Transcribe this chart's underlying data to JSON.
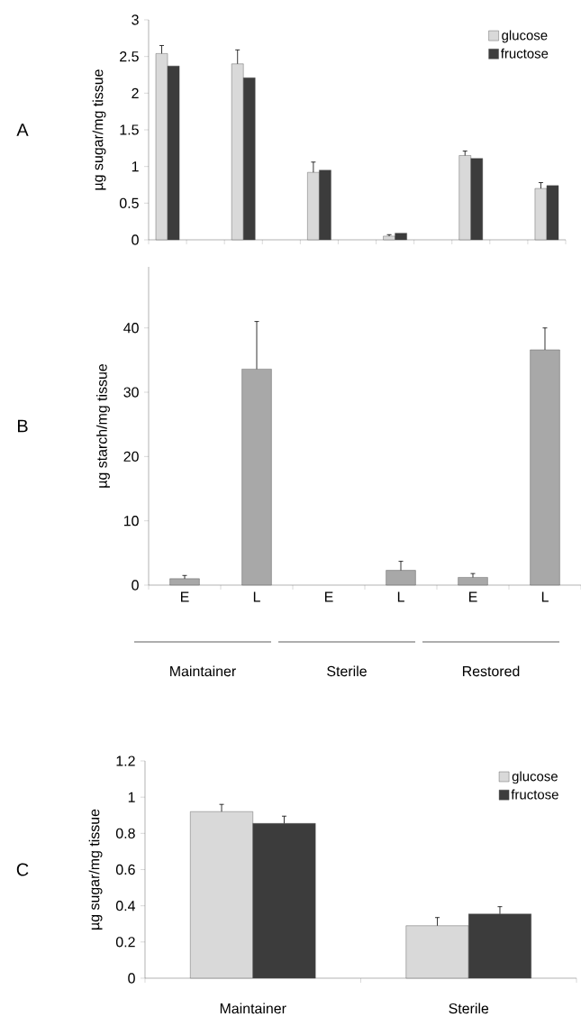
{
  "chart_data": [
    {
      "type": "bar",
      "ylabel": "µg sugar/mg tissue",
      "annotations": [
        "A"
      ],
      "categories": [
        null,
        null,
        null,
        null,
        null,
        null,
        null,
        null,
        null,
        null,
        null
      ],
      "series": [
        {
          "name": "glucose",
          "color": "#d9d9d9",
          "values": [
            2.54,
            null,
            2.4,
            null,
            0.92,
            null,
            0.05,
            null,
            1.15,
            null,
            0.7
          ],
          "errors": [
            0.11,
            null,
            0.19,
            null,
            0.14,
            null,
            0.02,
            null,
            0.06,
            null,
            0.08
          ]
        },
        {
          "name": "fructose",
          "color": "#3c3c3c",
          "values": [
            2.37,
            null,
            2.21,
            null,
            0.95,
            null,
            0.09,
            null,
            1.11,
            null,
            0.74
          ]
        }
      ],
      "ylim": [
        0,
        3
      ],
      "yticks": [
        0,
        0.5,
        1,
        1.5,
        2,
        2.5,
        3
      ],
      "legend": "top right"
    },
    {
      "type": "bar",
      "ylabel": "µg starch/mg tissue",
      "annotations": [
        "B",
        "Maintainer",
        "Sterile",
        "Restored"
      ],
      "categories": [
        "E",
        "L",
        "E",
        "L",
        "E",
        "L"
      ],
      "color": "#a8a8a8",
      "values": [
        1.0,
        33.6,
        null,
        2.3,
        1.2,
        36.6
      ],
      "errors": [
        0.5,
        7.4,
        null,
        1.4,
        0.6,
        3.4
      ],
      "ylim": [
        0,
        49.5
      ],
      "yticks": [
        0,
        10,
        20,
        30,
        40
      ]
    },
    {
      "type": "bar",
      "ylabel": "µg sugar/mg tissue",
      "annotations": [
        "C"
      ],
      "categories": [
        "Maintainer",
        "Sterile"
      ],
      "series": [
        {
          "name": "glucose",
          "color": "#d9d9d9",
          "values": [
            0.92,
            0.29
          ],
          "errors": [
            0.04,
            0.045
          ]
        },
        {
          "name": "fructose",
          "color": "#3c3c3c",
          "values": [
            0.855,
            0.355
          ],
          "errors": [
            0.04,
            0.04
          ]
        }
      ],
      "ylim": [
        0,
        1.2
      ],
      "yticks": [
        0,
        0.2,
        0.4,
        0.6,
        0.8,
        1,
        1.2
      ],
      "legend": "top right"
    }
  ]
}
